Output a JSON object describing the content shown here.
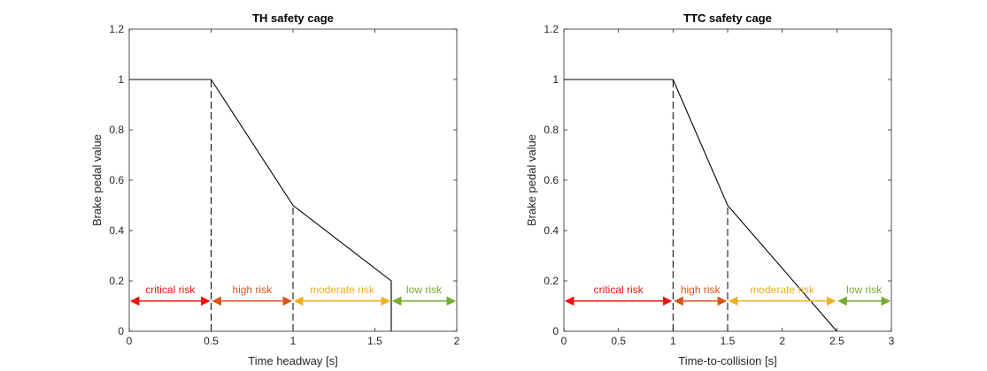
{
  "chart_data": [
    {
      "type": "line",
      "title": "TH safety cage",
      "xlabel": "Time headway [s]",
      "ylabel": "Brake pedal value",
      "xlim": [
        0,
        2
      ],
      "ylim": [
        0,
        1.2
      ],
      "xticks": [
        0,
        0.5,
        1,
        1.5,
        2
      ],
      "xtick_labels": [
        "0",
        "0.5",
        "1",
        "1.5",
        "2"
      ],
      "yticks": [
        0,
        0.2,
        0.4,
        0.6,
        0.8,
        1,
        1.2
      ],
      "ytick_labels": [
        "0",
        "0.2",
        "0.4",
        "0.6",
        "0.8",
        "1",
        "1.2"
      ],
      "grid": false,
      "series": [
        {
          "x": [
            0,
            0.5,
            1,
            1.6,
            1.6
          ],
          "y": [
            1,
            1,
            0.5,
            0.2,
            0
          ],
          "color": "#000000"
        }
      ],
      "dashed_lines": [
        {
          "x": 0.5,
          "y_from": 0,
          "y_to": 1
        },
        {
          "x": 1,
          "y_from": 0,
          "y_to": 0.5
        }
      ],
      "risk_zones": [
        {
          "label": "critical risk",
          "from": 0,
          "to": 0.5,
          "color": "#ee1111"
        },
        {
          "label": "high risk",
          "from": 0.5,
          "to": 1,
          "color": "#d9541a"
        },
        {
          "label": "moderate risk",
          "from": 1,
          "to": 1.6,
          "color": "#edb120"
        },
        {
          "label": "low risk",
          "from": 1.6,
          "to": 2,
          "color": "#77ac30"
        }
      ],
      "risk_arrow_y": 0.12
    },
    {
      "type": "line",
      "title": "TTC safety cage",
      "xlabel": "Time-to-collision [s]",
      "ylabel": "Brake pedal value",
      "xlim": [
        0,
        3
      ],
      "ylim": [
        0,
        1.2
      ],
      "xticks": [
        0,
        0.5,
        1,
        1.5,
        2,
        2.5,
        3
      ],
      "xtick_labels": [
        "0",
        "0.5",
        "1",
        "1.5",
        "2",
        "2.5",
        "3"
      ],
      "yticks": [
        0,
        0.2,
        0.4,
        0.6,
        0.8,
        1,
        1.2
      ],
      "ytick_labels": [
        "0",
        "0.2",
        "0.4",
        "0.6",
        "0.8",
        "1",
        "1.2"
      ],
      "grid": false,
      "series": [
        {
          "x": [
            0,
            1,
            1.5,
            2.5
          ],
          "y": [
            1,
            1,
            0.5,
            0
          ],
          "color": "#000000"
        }
      ],
      "dashed_lines": [
        {
          "x": 1,
          "y_from": 0,
          "y_to": 1
        },
        {
          "x": 1.5,
          "y_from": 0,
          "y_to": 0.5
        }
      ],
      "risk_zones": [
        {
          "label": "critical risk",
          "from": 0,
          "to": 1,
          "color": "#ee1111"
        },
        {
          "label": "high risk",
          "from": 1,
          "to": 1.5,
          "color": "#d9541a"
        },
        {
          "label": "moderate risk",
          "from": 1.5,
          "to": 2.5,
          "color": "#edb120"
        },
        {
          "label": "low risk",
          "from": 2.5,
          "to": 3,
          "color": "#77ac30"
        }
      ],
      "risk_arrow_y": 0.12
    }
  ]
}
